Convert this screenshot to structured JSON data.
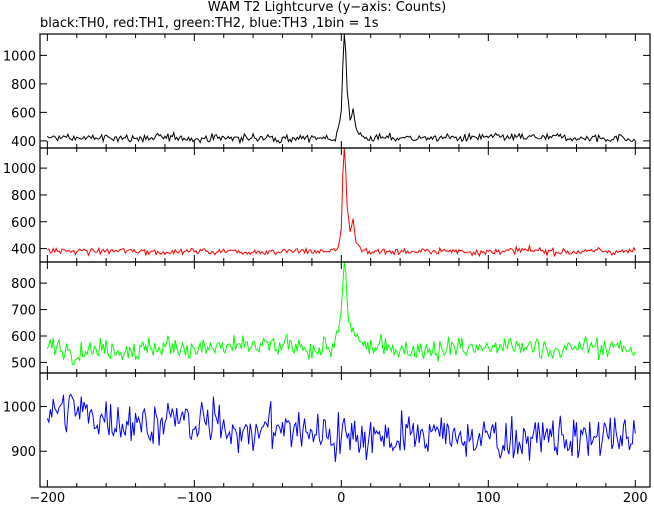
{
  "chart_data": {
    "type": "line",
    "title": "WAM T2 Lightcurve (y−axis: Counts)",
    "subtitle": "black:TH0, red:TH1, green:TH2, blue:TH3 ,1bin = 1s",
    "xlim": [
      -205,
      210
    ],
    "x_ticks": [
      -200,
      -100,
      0,
      100,
      200
    ],
    "x_tick_labels": [
      "−200",
      "−100",
      "0",
      "100",
      "200"
    ],
    "panels": [
      {
        "name": "TH0",
        "color": "#000000",
        "ylim": [
          350,
          1150
        ],
        "y_ticks": [
          400,
          600,
          800,
          1000
        ],
        "baseline": 420,
        "noise": 18,
        "peak": [
          [
            -5,
            420
          ],
          [
            -2,
            480
          ],
          [
            0,
            600
          ],
          [
            1,
            900
          ],
          [
            2,
            1150
          ],
          [
            3,
            1050
          ],
          [
            4,
            760
          ],
          [
            6,
            560
          ],
          [
            8,
            640
          ],
          [
            10,
            480
          ],
          [
            14,
            430
          ],
          [
            20,
            420
          ]
        ]
      },
      {
        "name": "TH1",
        "color": "#ff0000",
        "ylim": [
          300,
          1150
        ],
        "y_ticks": [
          400,
          600,
          800,
          1000
        ],
        "baseline": 380,
        "noise": 16,
        "peak": [
          [
            -5,
            380
          ],
          [
            -2,
            420
          ],
          [
            0,
            560
          ],
          [
            1,
            950
          ],
          [
            2,
            1150
          ],
          [
            3,
            1000
          ],
          [
            4,
            700
          ],
          [
            6,
            520
          ],
          [
            8,
            600
          ],
          [
            10,
            440
          ],
          [
            14,
            390
          ],
          [
            20,
            380
          ]
        ]
      },
      {
        "name": "TH2",
        "color": "#00ff00",
        "ylim": [
          460,
          880
        ],
        "y_ticks": [
          500,
          600,
          700,
          800
        ],
        "baseline": 555,
        "noise": 26,
        "peak": [
          [
            -6,
            560
          ],
          [
            -2,
            600
          ],
          [
            0,
            700
          ],
          [
            2,
            870
          ],
          [
            3,
            820
          ],
          [
            5,
            640
          ],
          [
            8,
            610
          ],
          [
            12,
            570
          ],
          [
            20,
            555
          ]
        ]
      },
      {
        "name": "TH3",
        "color": "#0000ff",
        "ylim": [
          820,
          1075
        ],
        "y_ticks": [
          900,
          1000
        ],
        "trend": [
          [
            -200,
            990
          ],
          [
            -150,
            975
          ],
          [
            -100,
            960
          ],
          [
            0,
            940
          ],
          [
            100,
            930
          ],
          [
            200,
            925
          ]
        ],
        "noise": 32,
        "peak": []
      }
    ],
    "grid": false,
    "legend": "none"
  }
}
